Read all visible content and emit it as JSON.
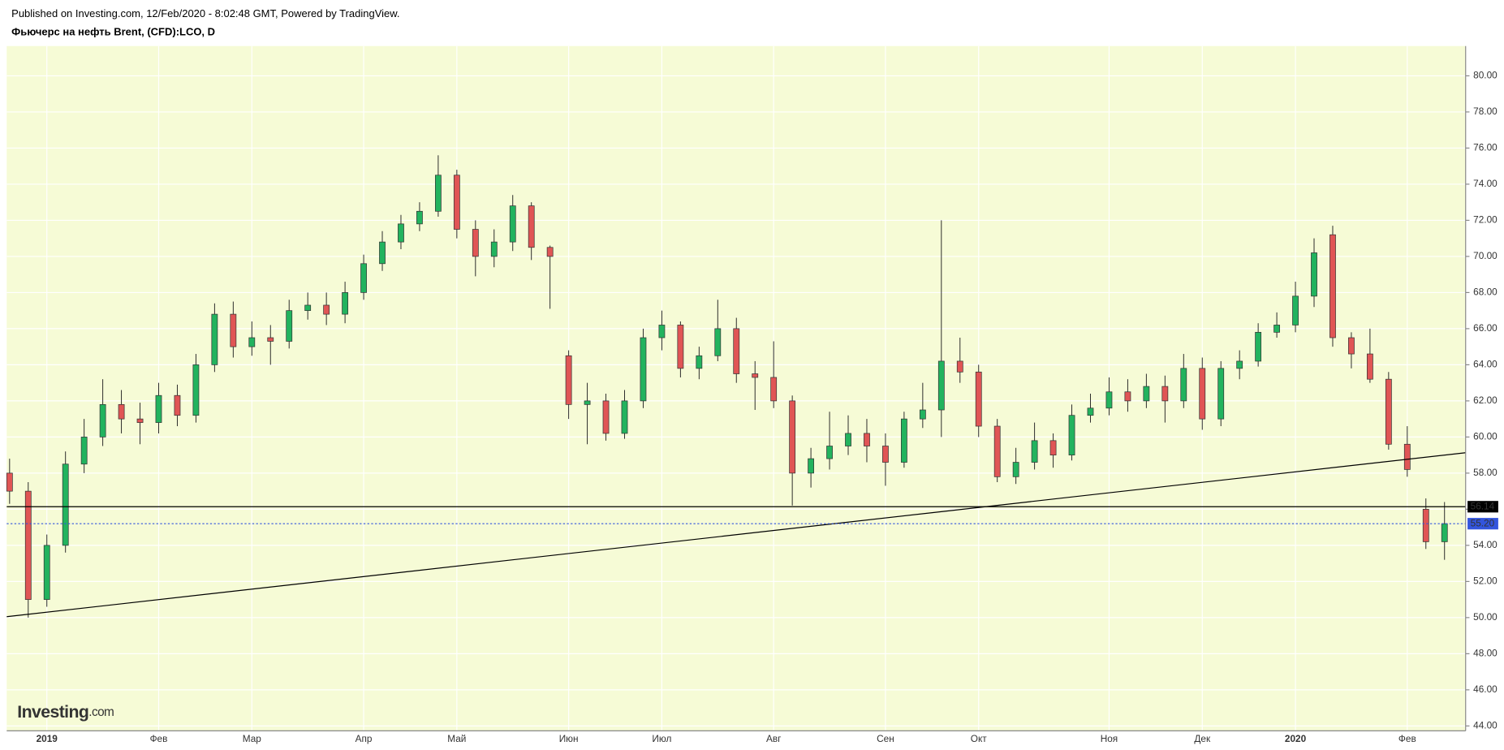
{
  "header": {
    "published": "Published on Investing.com, 12/Feb/2020 - 8:02:48 GMT, Powered by TradingView.",
    "instrument": "Фьючерс на нефть Brent, (CFD):LCO, D"
  },
  "logo": {
    "main": "Investing",
    "suffix": ".com"
  },
  "chart_data": {
    "type": "candlestick",
    "categories": [
      null,
      null,
      "2019",
      null,
      null,
      null,
      null,
      null,
      "Фев",
      null,
      null,
      null,
      null,
      "Мар",
      null,
      null,
      null,
      null,
      null,
      "Апр",
      null,
      null,
      null,
      null,
      "Май",
      null,
      null,
      null,
      null,
      null,
      "Июн",
      null,
      null,
      null,
      null,
      "Июл",
      null,
      null,
      null,
      null,
      null,
      "Авг",
      null,
      null,
      null,
      null,
      null,
      "Сен",
      null,
      null,
      null,
      null,
      "Окт",
      null,
      null,
      null,
      null,
      null,
      null,
      "Ноя",
      null,
      null,
      null,
      null,
      "Дек",
      null,
      null,
      null,
      null,
      "2020",
      null,
      null,
      null,
      null,
      null,
      "Фев",
      null,
      null
    ],
    "open": [
      58.0,
      57.0,
      51.0,
      54.0,
      58.5,
      60.0,
      61.8,
      61.0,
      60.8,
      62.3,
      61.2,
      64.0,
      66.8,
      65.0,
      65.5,
      65.3,
      67.0,
      67.3,
      66.8,
      68.0,
      69.6,
      70.8,
      71.8,
      72.5,
      74.5,
      71.5,
      70.0,
      70.8,
      72.8,
      70.5,
      64.5,
      61.8,
      62.0,
      60.2,
      62.0,
      65.5,
      66.2,
      63.8,
      64.5,
      66.0,
      63.5,
      63.3,
      62.0,
      58.0,
      58.8,
      59.5,
      60.2,
      59.5,
      58.6,
      61.0,
      61.5,
      64.2,
      63.6,
      60.6,
      57.8,
      58.6,
      59.8,
      59.0,
      61.2,
      61.6,
      62.5,
      62.0,
      62.8,
      62.0,
      63.8,
      61.0,
      63.8,
      64.2,
      65.8,
      66.2,
      67.8,
      71.2,
      65.5,
      64.6,
      63.2,
      59.6,
      56.0,
      54.2
    ],
    "high": [
      58.8,
      57.5,
      54.6,
      59.2,
      61.0,
      63.2,
      62.6,
      61.9,
      63.0,
      62.9,
      64.6,
      67.4,
      67.5,
      66.4,
      66.2,
      67.6,
      68.0,
      68.0,
      68.6,
      70.1,
      71.4,
      72.3,
      73.0,
      75.6,
      74.8,
      72.0,
      71.5,
      73.4,
      73.0,
      70.6,
      64.8,
      63.0,
      62.4,
      62.6,
      66.0,
      67.0,
      66.4,
      65.0,
      67.6,
      66.6,
      64.2,
      65.3,
      62.3,
      59.4,
      61.4,
      61.2,
      61.0,
      60.2,
      61.4,
      63.0,
      72.0,
      65.5,
      64.0,
      61.0,
      59.4,
      60.8,
      60.2,
      61.8,
      62.4,
      63.3,
      63.2,
      63.5,
      63.4,
      64.6,
      64.4,
      64.2,
      64.8,
      66.3,
      66.9,
      68.6,
      71.0,
      71.7,
      65.8,
      66.0,
      63.6,
      60.6,
      56.6,
      56.4
    ],
    "low": [
      56.3,
      50.0,
      50.6,
      53.6,
      58.0,
      59.5,
      60.2,
      59.6,
      60.2,
      60.6,
      60.8,
      63.6,
      64.4,
      64.5,
      64.0,
      64.9,
      66.5,
      66.2,
      66.3,
      67.6,
      69.2,
      70.4,
      71.4,
      72.2,
      71.0,
      68.9,
      69.4,
      70.3,
      69.8,
      67.1,
      61.0,
      59.6,
      59.8,
      59.9,
      61.6,
      64.8,
      63.3,
      63.2,
      64.2,
      63.0,
      61.5,
      61.6,
      56.2,
      57.2,
      58.2,
      59.0,
      58.6,
      57.3,
      58.3,
      60.5,
      60.0,
      63.0,
      60.0,
      57.5,
      57.4,
      58.2,
      58.3,
      58.7,
      60.8,
      61.2,
      61.4,
      61.6,
      60.8,
      61.6,
      60.4,
      60.6,
      63.2,
      63.9,
      65.5,
      65.8,
      67.2,
      65.0,
      63.8,
      63.0,
      59.3,
      57.8,
      53.8,
      53.2
    ],
    "close": [
      57.0,
      51.0,
      54.0,
      58.5,
      60.0,
      61.8,
      61.0,
      60.8,
      62.3,
      61.2,
      64.0,
      66.8,
      65.0,
      65.5,
      65.3,
      67.0,
      67.3,
      66.8,
      68.0,
      69.6,
      70.8,
      71.8,
      72.5,
      74.5,
      71.5,
      70.0,
      70.8,
      72.8,
      70.5,
      70.0,
      61.8,
      62.0,
      60.2,
      62.0,
      65.5,
      66.2,
      63.8,
      64.5,
      66.0,
      63.5,
      63.3,
      62.0,
      58.0,
      58.8,
      59.5,
      60.2,
      59.5,
      58.6,
      61.0,
      61.5,
      64.2,
      63.6,
      60.6,
      57.8,
      58.6,
      59.8,
      59.0,
      61.2,
      61.6,
      62.5,
      62.0,
      62.8,
      62.0,
      63.8,
      61.0,
      63.8,
      64.2,
      65.8,
      66.2,
      67.8,
      70.2,
      65.5,
      64.6,
      63.2,
      59.6,
      58.2,
      54.2,
      55.2
    ],
    "up_color": "#22b35e",
    "down_color": "#e05555",
    "ylim": [
      43.73,
      81.65
    ],
    "yticks": [
      {
        "value": 44,
        "label": "44.00"
      },
      {
        "value": 46,
        "label": "46.00"
      },
      {
        "value": 48,
        "label": "48.00"
      },
      {
        "value": 50,
        "label": "50.00"
      },
      {
        "value": 52,
        "label": "52.00"
      },
      {
        "value": 54,
        "label": "54.00"
      },
      {
        "value": 56,
        "label": "56.00"
      },
      {
        "value": 58,
        "label": "58.00"
      },
      {
        "value": 60,
        "label": "60.00"
      },
      {
        "value": 62,
        "label": "62.00"
      },
      {
        "value": 64,
        "label": "64.00"
      },
      {
        "value": 66,
        "label": "66.00"
      },
      {
        "value": 68,
        "label": "68.00"
      },
      {
        "value": 70,
        "label": "70.00"
      },
      {
        "value": 72,
        "label": "72.00"
      },
      {
        "value": 74,
        "label": "74.00"
      },
      {
        "value": 76,
        "label": "76.00"
      },
      {
        "value": 78,
        "label": "78.00"
      },
      {
        "value": 80,
        "label": "80.00"
      }
    ],
    "grid": true,
    "trendline": {
      "values": [
        50.05,
        59.13
      ],
      "color": "#000000"
    },
    "level_line": {
      "value": 56.14,
      "label": "56.14",
      "color": "#000000"
    },
    "last_price": {
      "value": 55.2,
      "label": "55.20",
      "color": "#3355dd"
    }
  }
}
